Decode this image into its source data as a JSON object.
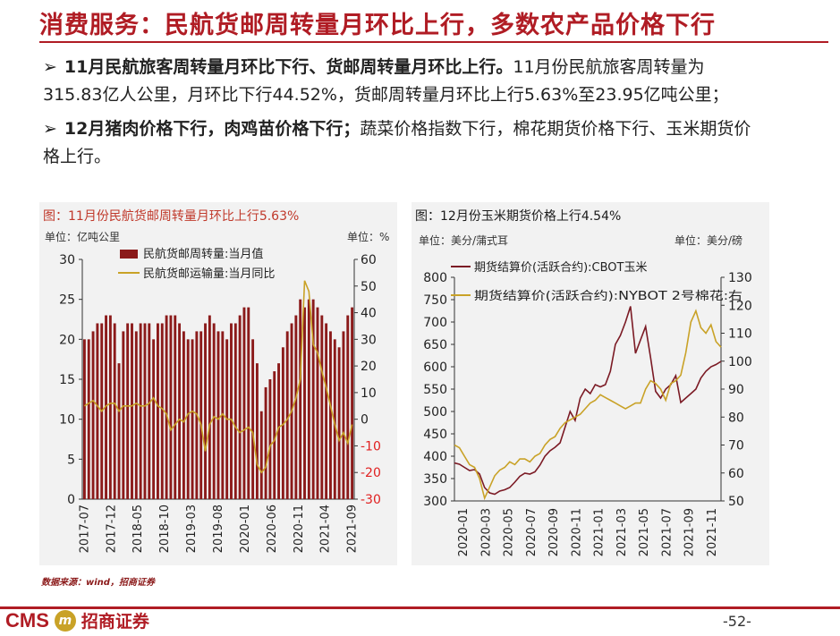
{
  "slide": {
    "title": "消费服务：民航货邮周转量月环比上行，多数农产品价格下行",
    "bullets": [
      {
        "arrow": "➢",
        "bold": "11月民航旅客周转量月环比下行、货邮周转量月环比上行。",
        "text": "11月份民航旅客周转量为315.83亿人公里，月环比下行44.52%，货邮周转量月环比上行5.63%至23.95亿吨公里；"
      },
      {
        "arrow": "➢",
        "bold": "12月猪肉价格下行，肉鸡苗价格下行；",
        "text": "蔬菜价格指数下行，棉花期货价格下行、玉米期货价格上行。"
      }
    ],
    "source": "数据来源：wind，招商证券",
    "page_number": "-52-",
    "logo_text": "CMS",
    "logo_cn": "招商证券"
  },
  "colors": {
    "accent": "#b01c24",
    "bar": "#8b1a1a",
    "line_gold": "#c9a227",
    "line_maroon": "#7b1a24",
    "neg_tick": "#e02020"
  },
  "chart_data": [
    {
      "type": "bar+line",
      "title": "图：11月份民航货邮周转量月环比上行5.63%",
      "ylabel_left": "单位：亿吨公里",
      "ylabel_right": "单位：%",
      "ylim_left": [
        0,
        30
      ],
      "ylim_right": [
        -30,
        60
      ],
      "yticks_left": [
        "0",
        "5",
        "10",
        "15",
        "20",
        "25",
        "30"
      ],
      "yticks_right": [
        "-30",
        "-20",
        "-10",
        "0",
        "10",
        "20",
        "30",
        "40",
        "50",
        "60"
      ],
      "x_tick_labels": [
        "2017-07",
        "2017-12",
        "2018-05",
        "2018-10",
        "2019-03",
        "2019-08",
        "2020-01",
        "2020-06",
        "2020-11",
        "2021-04",
        "2021-09"
      ],
      "legend": [
        "民航货邮周转量:当月值",
        "民航货邮运输量:当月同比"
      ],
      "bar_values": [
        20,
        20,
        21,
        22,
        22,
        23,
        23,
        22,
        17,
        21,
        22,
        22,
        21,
        22,
        22,
        22,
        20,
        22,
        22,
        23,
        23,
        23,
        22,
        21,
        20,
        20,
        21,
        21,
        22,
        23,
        22,
        21,
        21,
        20,
        22,
        22,
        23,
        24,
        24,
        20,
        17,
        11,
        14,
        15,
        16,
        17,
        19,
        21,
        22,
        23,
        25,
        24,
        25,
        25,
        24,
        23,
        22,
        21,
        20,
        19,
        21,
        23,
        24
      ],
      "line_values": [
        5,
        6,
        7,
        5,
        3,
        5,
        6,
        6,
        3,
        5,
        5,
        5,
        6,
        5,
        5,
        6,
        8,
        5,
        4,
        2,
        -4,
        -2,
        0,
        -1,
        2,
        3,
        2,
        -2,
        -12,
        -2,
        1,
        0,
        2,
        0,
        0,
        -3,
        -5,
        -4,
        -3,
        -5,
        -17,
        -20,
        -18,
        -10,
        -8,
        -3,
        -2,
        0,
        3,
        8,
        15,
        52,
        48,
        28,
        25,
        18,
        12,
        5,
        -2,
        -8,
        -5,
        -9,
        -2
      ]
    },
    {
      "type": "line",
      "title": "图：12月份玉米期货价格上行4.54%",
      "ylabel_left": "单位：美分/蒲式耳",
      "ylabel_right": "单位：美分/磅",
      "ylim_left": [
        300,
        800
      ],
      "ylim_right": [
        50,
        130
      ],
      "yticks_left": [
        "300",
        "350",
        "400",
        "450",
        "500",
        "550",
        "600",
        "650",
        "700",
        "750",
        "800"
      ],
      "yticks_right": [
        "50",
        "60",
        "70",
        "80",
        "90",
        "100",
        "110",
        "120",
        "130"
      ],
      "x_tick_labels": [
        "2020-01",
        "2020-03",
        "2020-05",
        "2020-07",
        "2020-09",
        "2020-11",
        "2021-01",
        "2021-03",
        "2021-05",
        "2021-07",
        "2021-09",
        "2021-11"
      ],
      "series": [
        {
          "name": "期货结算价(活跃合约):CBOT玉米",
          "axis": "left",
          "values": [
            385,
            382,
            375,
            368,
            370,
            360,
            330,
            318,
            315,
            322,
            325,
            330,
            342,
            355,
            362,
            360,
            365,
            380,
            400,
            412,
            420,
            430,
            465,
            500,
            480,
            530,
            550,
            540,
            560,
            555,
            560,
            590,
            650,
            670,
            700,
            735,
            630,
            660,
            690,
            620,
            545,
            530,
            550,
            560,
            580,
            520,
            530,
            540,
            550,
            575,
            590,
            600,
            605,
            612
          ]
        },
        {
          "name": "期货结算价(活跃合约):NYBOT 2号棉花:右",
          "axis": "right",
          "values": [
            70,
            69,
            66,
            63,
            62,
            58,
            51,
            55,
            59,
            61,
            62,
            64,
            63,
            65,
            65,
            64,
            66,
            67,
            70,
            72,
            73,
            76,
            78,
            79,
            80,
            81,
            83,
            85,
            86,
            88,
            87,
            86,
            85,
            84,
            83,
            84,
            85,
            85,
            90,
            93,
            92,
            90,
            86,
            92,
            93,
            95,
            103,
            114,
            118,
            112,
            110,
            113,
            107,
            105
          ]
        }
      ]
    }
  ]
}
